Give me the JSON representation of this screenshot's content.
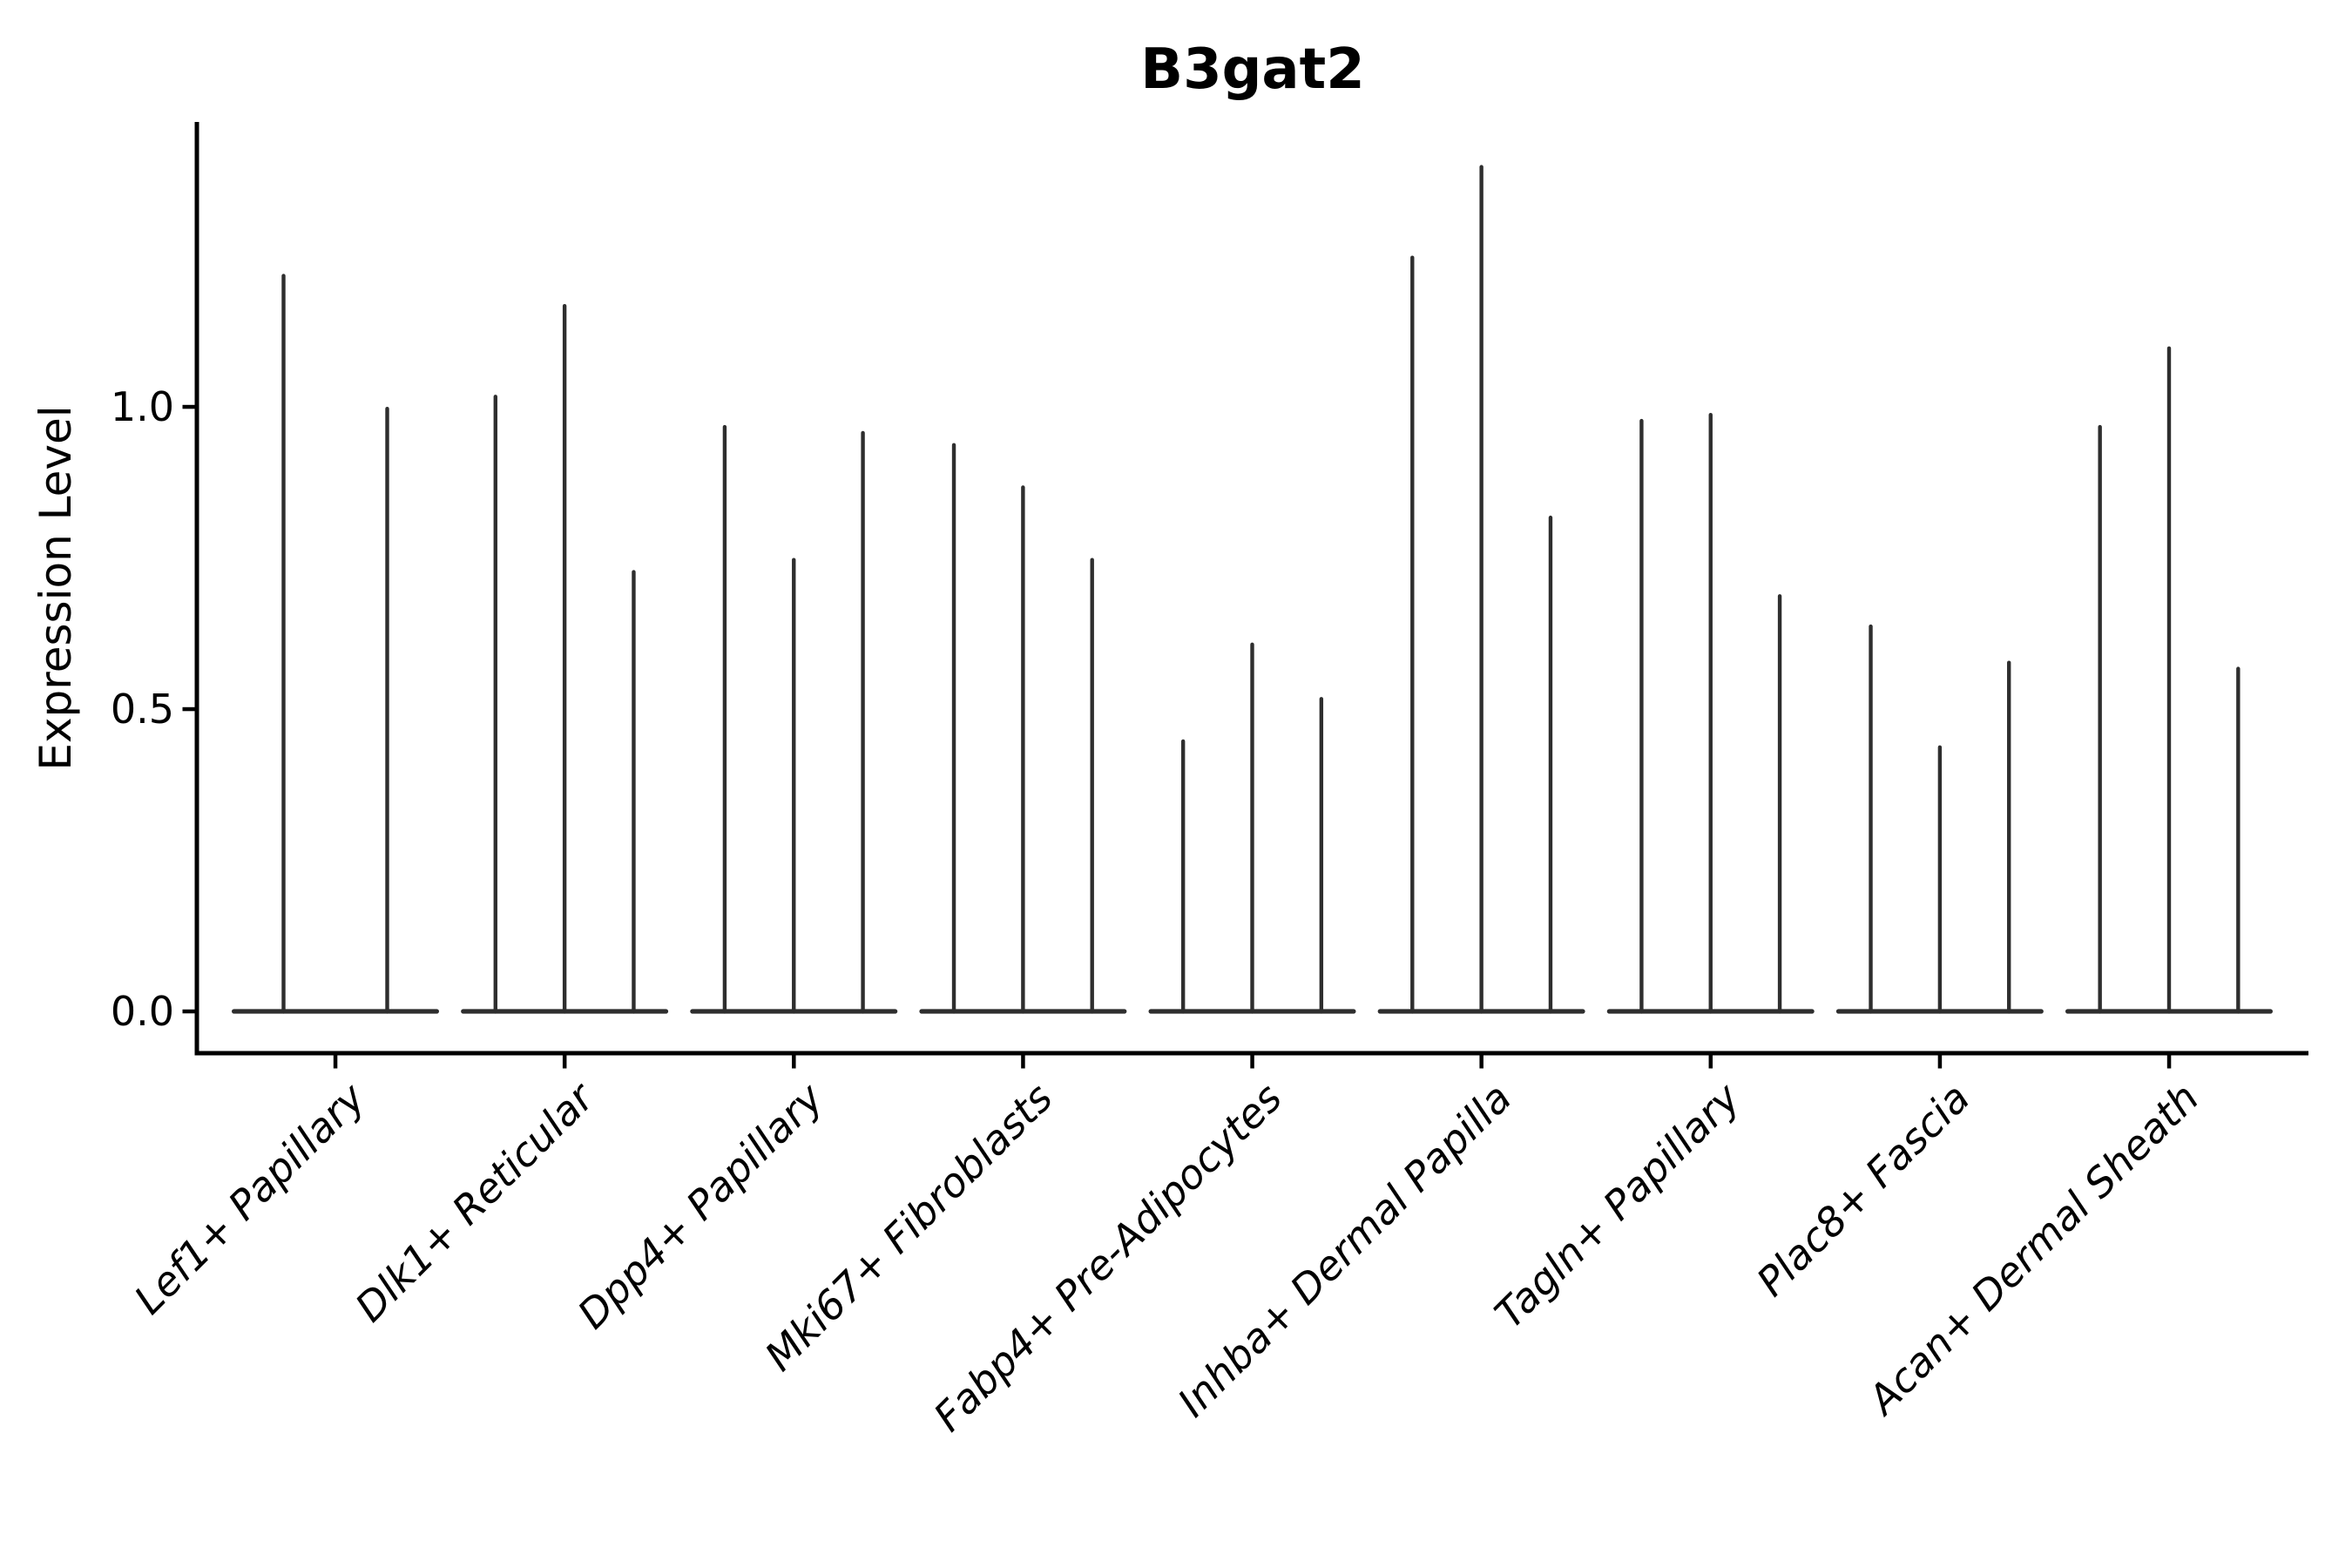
{
  "title": "B3gat2",
  "y_axis": {
    "label": "Expression Level",
    "tick_labels": [
      "0.0",
      "0.5",
      "1.0"
    ],
    "tick_values": [
      0.0,
      0.5,
      1.0
    ]
  },
  "chart_data": {
    "type": "violin",
    "title": "B3gat2",
    "xlabel": "",
    "ylabel": "Expression Level",
    "ylim": [
      -0.07,
      1.47
    ],
    "yticks": [
      "0.0",
      "0.5",
      "1.0"
    ],
    "ytick_values": [
      0.0,
      0.5,
      1.0
    ],
    "grid": false,
    "legend": "none",
    "categories": [
      "Lef1+ Papillary",
      "Dlk1+ Reticular",
      "Dpp4+ Papillary",
      "Mki67+ Fibroblasts",
      "Fabp4+ Pre-Adipocytes",
      "Inhba+ Dermal Papilla",
      "Tagln+ Papillary",
      "Plac8+ Fascia",
      "Acan+ Dermal Sheath"
    ],
    "violins_per_category": [
      2,
      3,
      3,
      3,
      3,
      3,
      3,
      3,
      3
    ],
    "description": "Each category shows very thin violins (near-zero density bodies at 0 with a single spike up to the max expression value).",
    "spike_maxima": [
      [
        1.22,
        1.0
      ],
      [
        1.02,
        1.17,
        0.73
      ],
      [
        0.97,
        0.75,
        0.96
      ],
      [
        0.94,
        0.87,
        0.75
      ],
      [
        0.45,
        0.61,
        0.52
      ],
      [
        1.25,
        1.4,
        0.82
      ],
      [
        0.98,
        0.99,
        0.69
      ],
      [
        0.64,
        0.44,
        0.58
      ],
      [
        0.97,
        1.1,
        0.57
      ]
    ],
    "colors": {
      "violin": "#2e2e2e",
      "axis": "#000000",
      "text": "#000000",
      "background": "#ffffff"
    }
  }
}
